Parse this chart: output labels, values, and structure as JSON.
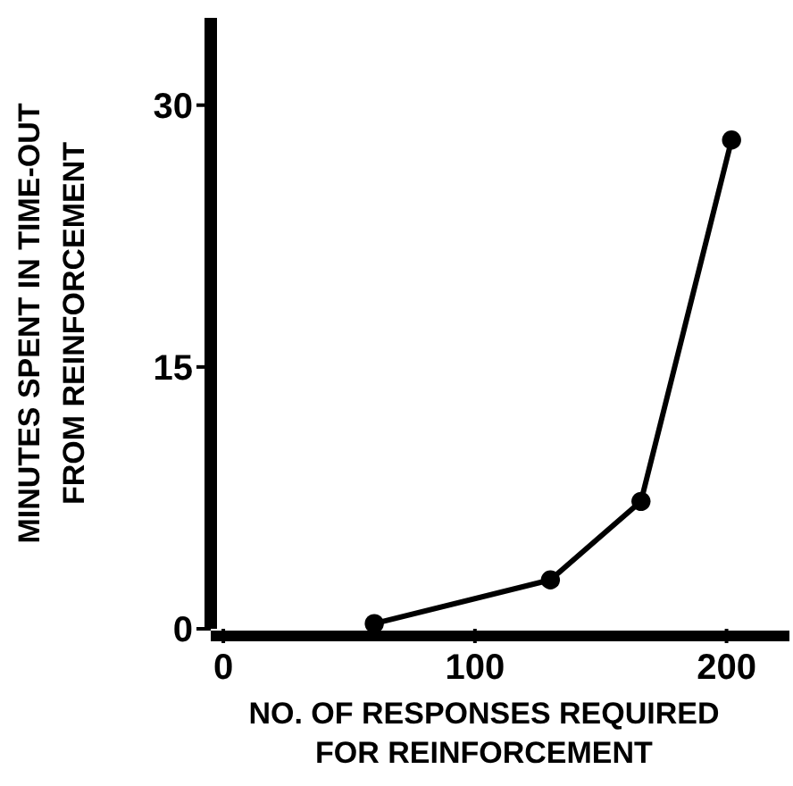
{
  "chart_data": {
    "type": "line",
    "xlabel": "NO. OF RESPONSES REQUIRED\nFOR REINFORCEMENT",
    "ylabel": "MINUTES SPENT IN TIME-OUT\nFROM REINFORCEMENT",
    "x": [
      60,
      130,
      166,
      202
    ],
    "series": [
      {
        "color": "#000000",
        "values": [
          0.3,
          2.8,
          7.3,
          28
        ]
      }
    ],
    "xlim": [
      -5,
      225
    ],
    "xticks": [
      0,
      100,
      200
    ],
    "ylim": [
      0,
      35
    ],
    "yticks": [
      0,
      15,
      30
    ],
    "grid": false,
    "marker": "circle",
    "line_style": "solid"
  }
}
